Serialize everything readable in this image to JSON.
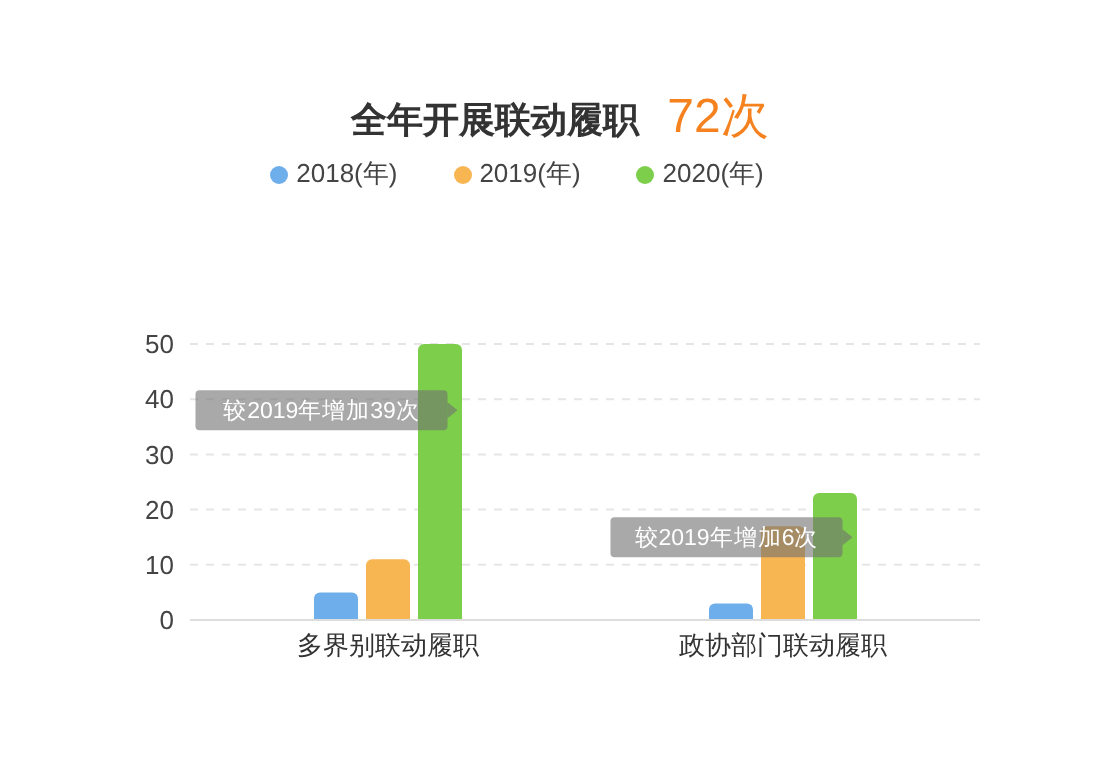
{
  "chart_data": {
    "type": "bar",
    "title": "全年开展联动履职",
    "subtitle": "72次",
    "categories": [
      "多界别联动履职",
      "政协部门联动履职"
    ],
    "series": [
      {
        "name": "2018(年)",
        "color": "#6eaeea",
        "values": [
          5,
          3
        ]
      },
      {
        "name": "2019(年)",
        "color": "#f8b653",
        "values": [
          11,
          17
        ]
      },
      {
        "name": "2020(年)",
        "color": "#7dcf4b",
        "values": [
          50,
          23
        ]
      }
    ],
    "ylim": [
      0,
      50
    ],
    "yticks": [
      0,
      10,
      20,
      30,
      40,
      50
    ],
    "grid": "y",
    "legend": "top",
    "annotations": [
      "较2019年增加39次",
      "较2019年增加6次"
    ]
  }
}
